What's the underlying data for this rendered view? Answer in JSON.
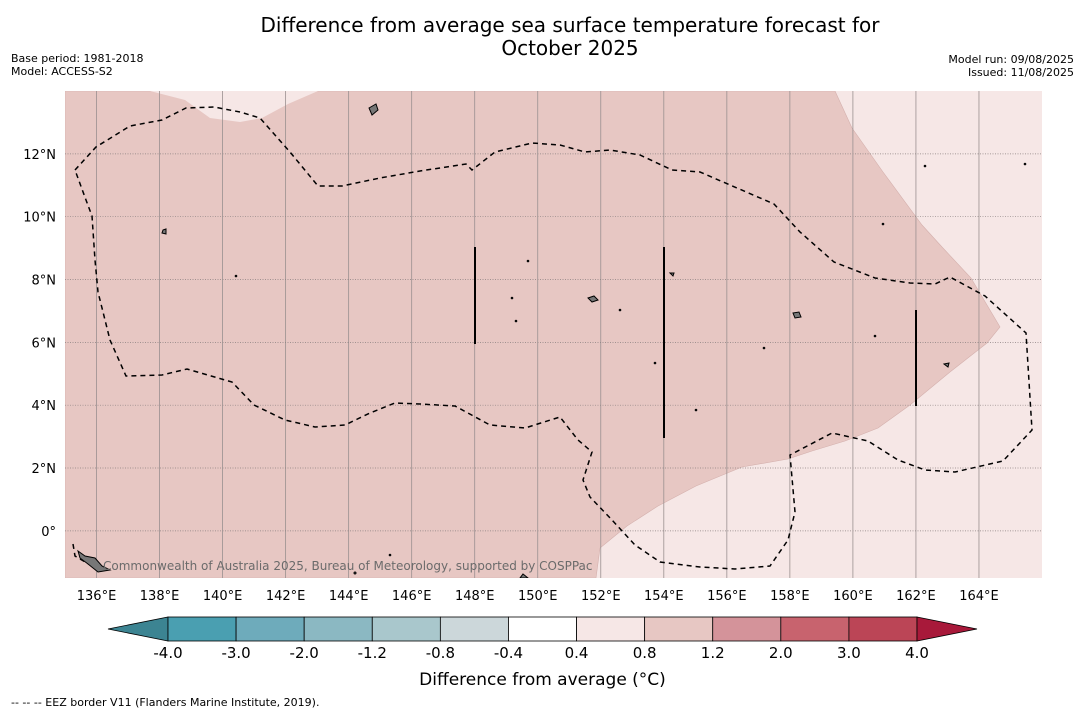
{
  "header": {
    "title_line1": "Difference from average sea surface temperature forecast for",
    "title_line2": "October 2025",
    "base_period": "Base period: 1981-2018",
    "model": "Model: ACCESS-S2",
    "model_run": "Model run: 09/08/2025",
    "issued": "Issued: 11/08/2025"
  },
  "map": {
    "lon_range": [
      135,
      166
    ],
    "lat_range": [
      -1.5,
      14
    ],
    "lon_ticks": [
      136,
      138,
      140,
      142,
      144,
      146,
      148,
      150,
      152,
      154,
      156,
      158,
      160,
      162,
      164
    ],
    "lon_labels": [
      "136°E",
      "138°E",
      "140°E",
      "142°E",
      "144°E",
      "146°E",
      "148°E",
      "150°E",
      "152°E",
      "154°E",
      "156°E",
      "158°E",
      "160°E",
      "162°E",
      "164°E"
    ],
    "lat_ticks": [
      0,
      2,
      4,
      6,
      8,
      10,
      12
    ],
    "lat_labels": [
      "0°",
      "2°N",
      "4°N",
      "6°N",
      "8°N",
      "10°N",
      "12°N"
    ],
    "copyright": "Commonwealth of Australia 2025, Bureau of Meteorology, supported by COSPPac",
    "colors": {
      "warm_04_08": "#f6e7e6",
      "warm_08_12": "#e7c7c3"
    }
  },
  "colorbar": {
    "colors": [
      "#3c8492",
      "#4a9fb1",
      "#6eabbb",
      "#8bb8c2",
      "#a9c7cc",
      "#ccd7da",
      "#ffffff",
      "#f6e7e6",
      "#e7c7c3",
      "#d4939a",
      "#c8636e",
      "#bb4556",
      "#a8193a"
    ],
    "tick_labels": [
      "-4.0",
      "-3.0",
      "-2.0",
      "-1.2",
      "-0.8",
      "-0.4",
      "0.4",
      "0.8",
      "1.2",
      "2.0",
      "3.0",
      "4.0"
    ],
    "label": "Difference from average (°C)"
  },
  "footnote": "--  --  -- EEZ border V11 (Flanders Marine Institute, 2019)."
}
